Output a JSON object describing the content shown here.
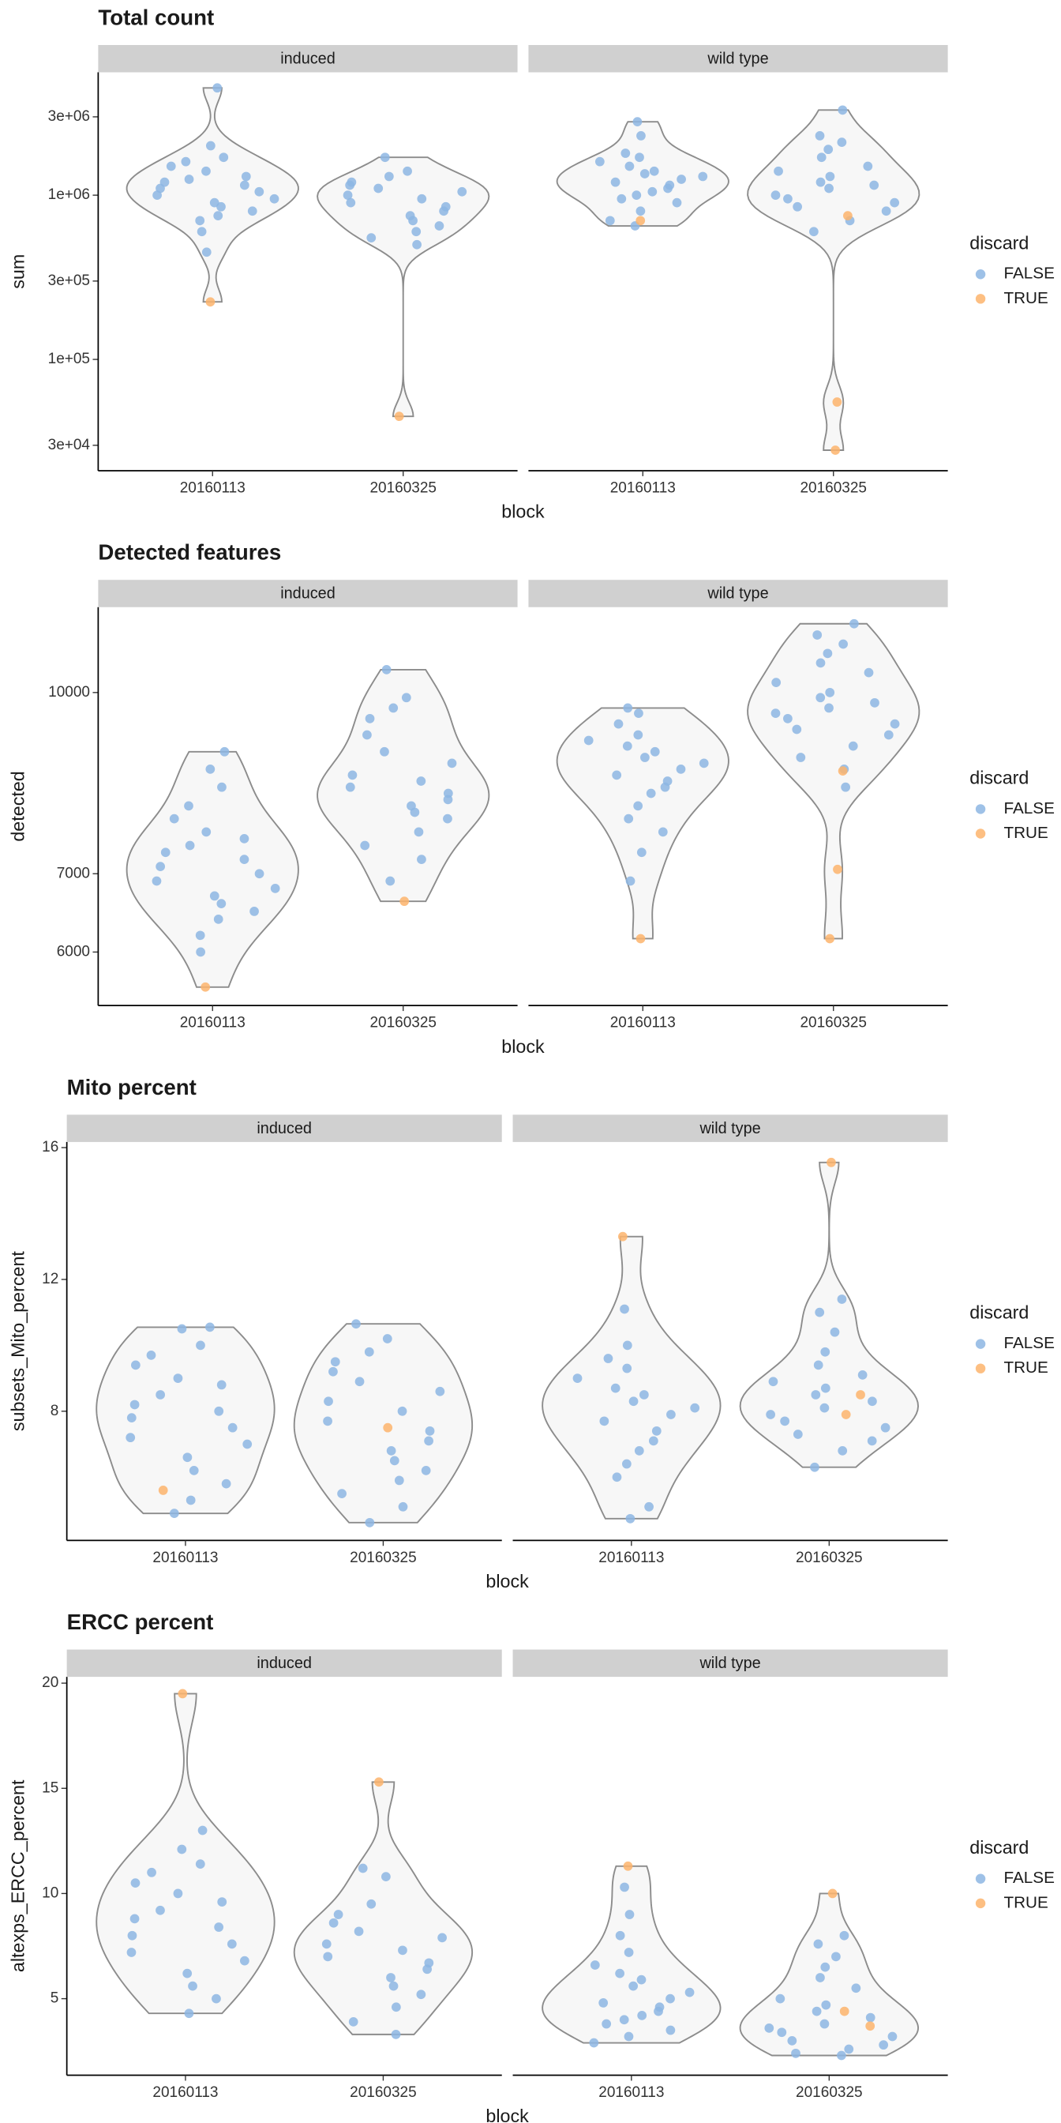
{
  "chart_data": [
    {
      "type": "violin",
      "title": "Total count",
      "ylabel": "sum",
      "xlabel": "block",
      "log_y": true,
      "ylim": [
        21000,
        5600000
      ],
      "yticks": [
        {
          "value": 30000,
          "label": "3e+04"
        },
        {
          "value": 100000,
          "label": "1e+05"
        },
        {
          "value": 300000,
          "label": "3e+05"
        },
        {
          "value": 1000000,
          "label": "1e+06"
        },
        {
          "value": 3000000,
          "label": "3e+06"
        }
      ],
      "legend_title": "discard",
      "series": [
        {
          "name": "FALSE",
          "color": "#8db6e3"
        },
        {
          "name": "TRUE",
          "color": "#fdb46c"
        }
      ],
      "facets": [
        {
          "name": "induced",
          "categories": [
            "20160113",
            "20160325"
          ],
          "values": [
            [
              4500000,
              2000000,
              1700000,
              1600000,
              1500000,
              1400000,
              1300000,
              1250000,
              1200000,
              1150000,
              1100000,
              1050000,
              1000000,
              950000,
              900000,
              850000,
              800000,
              750000,
              700000,
              600000,
              450000
            ],
            [
              1700000,
              1400000,
              1300000,
              1200000,
              1150000,
              1100000,
              1050000,
              1000000,
              950000,
              900000,
              850000,
              800000,
              750000,
              700000,
              650000,
              600000,
              550000,
              500000
            ]
          ],
          "discard_values": [
            [
              224000
            ],
            [
              45000
            ]
          ]
        },
        {
          "name": "wild type",
          "categories": [
            "20160113",
            "20160325"
          ],
          "values": [
            [
              2800000,
              2300000,
              1800000,
              1700000,
              1600000,
              1500000,
              1400000,
              1350000,
              1300000,
              1250000,
              1200000,
              1150000,
              1100000,
              1050000,
              1000000,
              950000,
              900000,
              800000,
              700000,
              650000
            ],
            [
              3300000,
              2300000,
              2100000,
              1900000,
              1700000,
              1500000,
              1400000,
              1300000,
              1200000,
              1150000,
              1100000,
              1000000,
              950000,
              900000,
              850000,
              800000,
              700000,
              600000
            ]
          ],
          "discard_values": [
            [
              700000
            ],
            [
              750000,
              55000,
              28000
            ]
          ]
        }
      ]
    },
    {
      "type": "violin",
      "title": "Detected features",
      "ylabel": "detected",
      "xlabel": "block",
      "log_y": true,
      "ylim": [
        5400,
        11830
      ],
      "yticks": [
        6000,
        7000,
        10000
      ],
      "legend_title": "discard",
      "series": [
        {
          "name": "FALSE",
          "color": "#8db6e3"
        },
        {
          "name": "TRUE",
          "color": "#fdb46c"
        }
      ],
      "facets": [
        {
          "name": "induced",
          "categories": [
            "20160113",
            "20160325"
          ],
          "values": [
            [
              8900,
              8600,
              8300,
              8000,
              7800,
              7600,
              7500,
              7400,
              7300,
              7200,
              7100,
              7000,
              6900,
              6800,
              6700,
              6600,
              6500,
              6400,
              6200,
              6000
            ],
            [
              10460,
              9900,
              9700,
              9500,
              9200,
              8900,
              8700,
              8500,
              8400,
              8300,
              8200,
              8100,
              8000,
              7900,
              7800,
              7600,
              7400,
              7200,
              6900
            ]
          ],
          "discard_values": [
            [
              5600
            ],
            [
              6630
            ]
          ]
        },
        {
          "name": "wild type",
          "categories": [
            "20160113",
            "20160325"
          ],
          "values": [
            [
              9700,
              9600,
              9400,
              9200,
              9100,
              9000,
              8900,
              8800,
              8700,
              8600,
              8500,
              8400,
              8300,
              8200,
              8000,
              7800,
              7600,
              7300,
              6900
            ],
            [
              11450,
              11200,
              11000,
              10800,
              10600,
              10400,
              10200,
              10000,
              9900,
              9800,
              9700,
              9600,
              9500,
              9400,
              9300,
              9200,
              9000,
              8800,
              8600,
              8300
            ]
          ],
          "discard_values": [
            [
              6160
            ],
            [
              8570,
              7060,
              6160
            ]
          ]
        }
      ]
    },
    {
      "type": "violin",
      "title": "Mito percent",
      "ylabel": "subsets_Mito_percent",
      "xlabel": "block",
      "log_y": false,
      "ylim": [
        4.08,
        16.17
      ],
      "yticks": [
        8,
        12,
        16
      ],
      "legend_title": "discard",
      "series": [
        {
          "name": "FALSE",
          "color": "#8db6e3"
        },
        {
          "name": "TRUE",
          "color": "#fdb46c"
        }
      ],
      "facets": [
        {
          "name": "induced",
          "categories": [
            "20160113",
            "20160325"
          ],
          "values": [
            [
              10.55,
              10.5,
              10.0,
              9.7,
              9.4,
              9.0,
              8.8,
              8.5,
              8.2,
              8.0,
              7.8,
              7.5,
              7.2,
              7.0,
              6.6,
              6.2,
              5.8,
              5.3,
              4.9
            ],
            [
              10.65,
              10.2,
              9.8,
              9.5,
              9.2,
              8.9,
              8.6,
              8.3,
              8.0,
              7.7,
              7.4,
              7.1,
              6.8,
              6.5,
              6.2,
              5.9,
              5.5,
              5.1,
              4.62
            ]
          ],
          "discard_values": [
            [
              5.6
            ],
            [
              7.5
            ]
          ]
        },
        {
          "name": "wild type",
          "categories": [
            "20160113",
            "20160325"
          ],
          "values": [
            [
              11.1,
              10.0,
              9.6,
              9.3,
              9.0,
              8.7,
              8.5,
              8.3,
              8.1,
              7.9,
              7.7,
              7.4,
              7.1,
              6.8,
              6.4,
              6.0,
              5.1,
              4.74
            ],
            [
              11.4,
              11.0,
              10.4,
              9.8,
              9.4,
              9.1,
              8.9,
              8.7,
              8.5,
              8.3,
              8.1,
              7.9,
              7.7,
              7.5,
              7.3,
              7.1,
              6.8,
              6.3
            ]
          ],
          "discard_values": [
            [
              13.3
            ],
            [
              15.55,
              8.5,
              7.9
            ]
          ]
        }
      ]
    },
    {
      "type": "violin",
      "title": "ERCC percent",
      "ylabel": "altexps_ERCC_percent",
      "xlabel": "block",
      "log_y": false,
      "ylim": [
        1.36,
        20.3
      ],
      "yticks": [
        5,
        10,
        15,
        20
      ],
      "legend_title": "discard",
      "series": [
        {
          "name": "FALSE",
          "color": "#8db6e3"
        },
        {
          "name": "TRUE",
          "color": "#fdb46c"
        }
      ],
      "facets": [
        {
          "name": "induced",
          "categories": [
            "20160113",
            "20160325"
          ],
          "values": [
            [
              13.0,
              12.1,
              11.4,
              11.0,
              10.5,
              10.0,
              9.6,
              9.2,
              8.8,
              8.4,
              8.0,
              7.6,
              7.2,
              6.8,
              6.2,
              5.6,
              5.0,
              4.3
            ],
            [
              11.2,
              10.8,
              9.5,
              9.0,
              8.6,
              8.2,
              7.9,
              7.6,
              7.3,
              7.0,
              6.7,
              6.4,
              6.0,
              5.6,
              5.2,
              4.6,
              3.9,
              3.3
            ]
          ],
          "discard_values": [
            [
              19.5
            ],
            [
              15.3
            ]
          ]
        },
        {
          "name": "wild type",
          "categories": [
            "20160113",
            "20160325"
          ],
          "values": [
            [
              10.3,
              9.0,
              8.0,
              7.2,
              6.6,
              6.2,
              5.9,
              5.6,
              5.3,
              5.0,
              4.8,
              4.6,
              4.4,
              4.2,
              4.0,
              3.8,
              3.5,
              3.2,
              2.9
            ],
            [
              8.0,
              7.6,
              7.0,
              6.5,
              6.0,
              5.5,
              5.0,
              4.7,
              4.4,
              4.1,
              3.8,
              3.6,
              3.4,
              3.2,
              3.0,
              2.8,
              2.6,
              2.4,
              2.3
            ]
          ],
          "discard_values": [
            [
              11.3
            ],
            [
              10.0,
              4.4,
              3.7
            ]
          ]
        }
      ]
    }
  ]
}
